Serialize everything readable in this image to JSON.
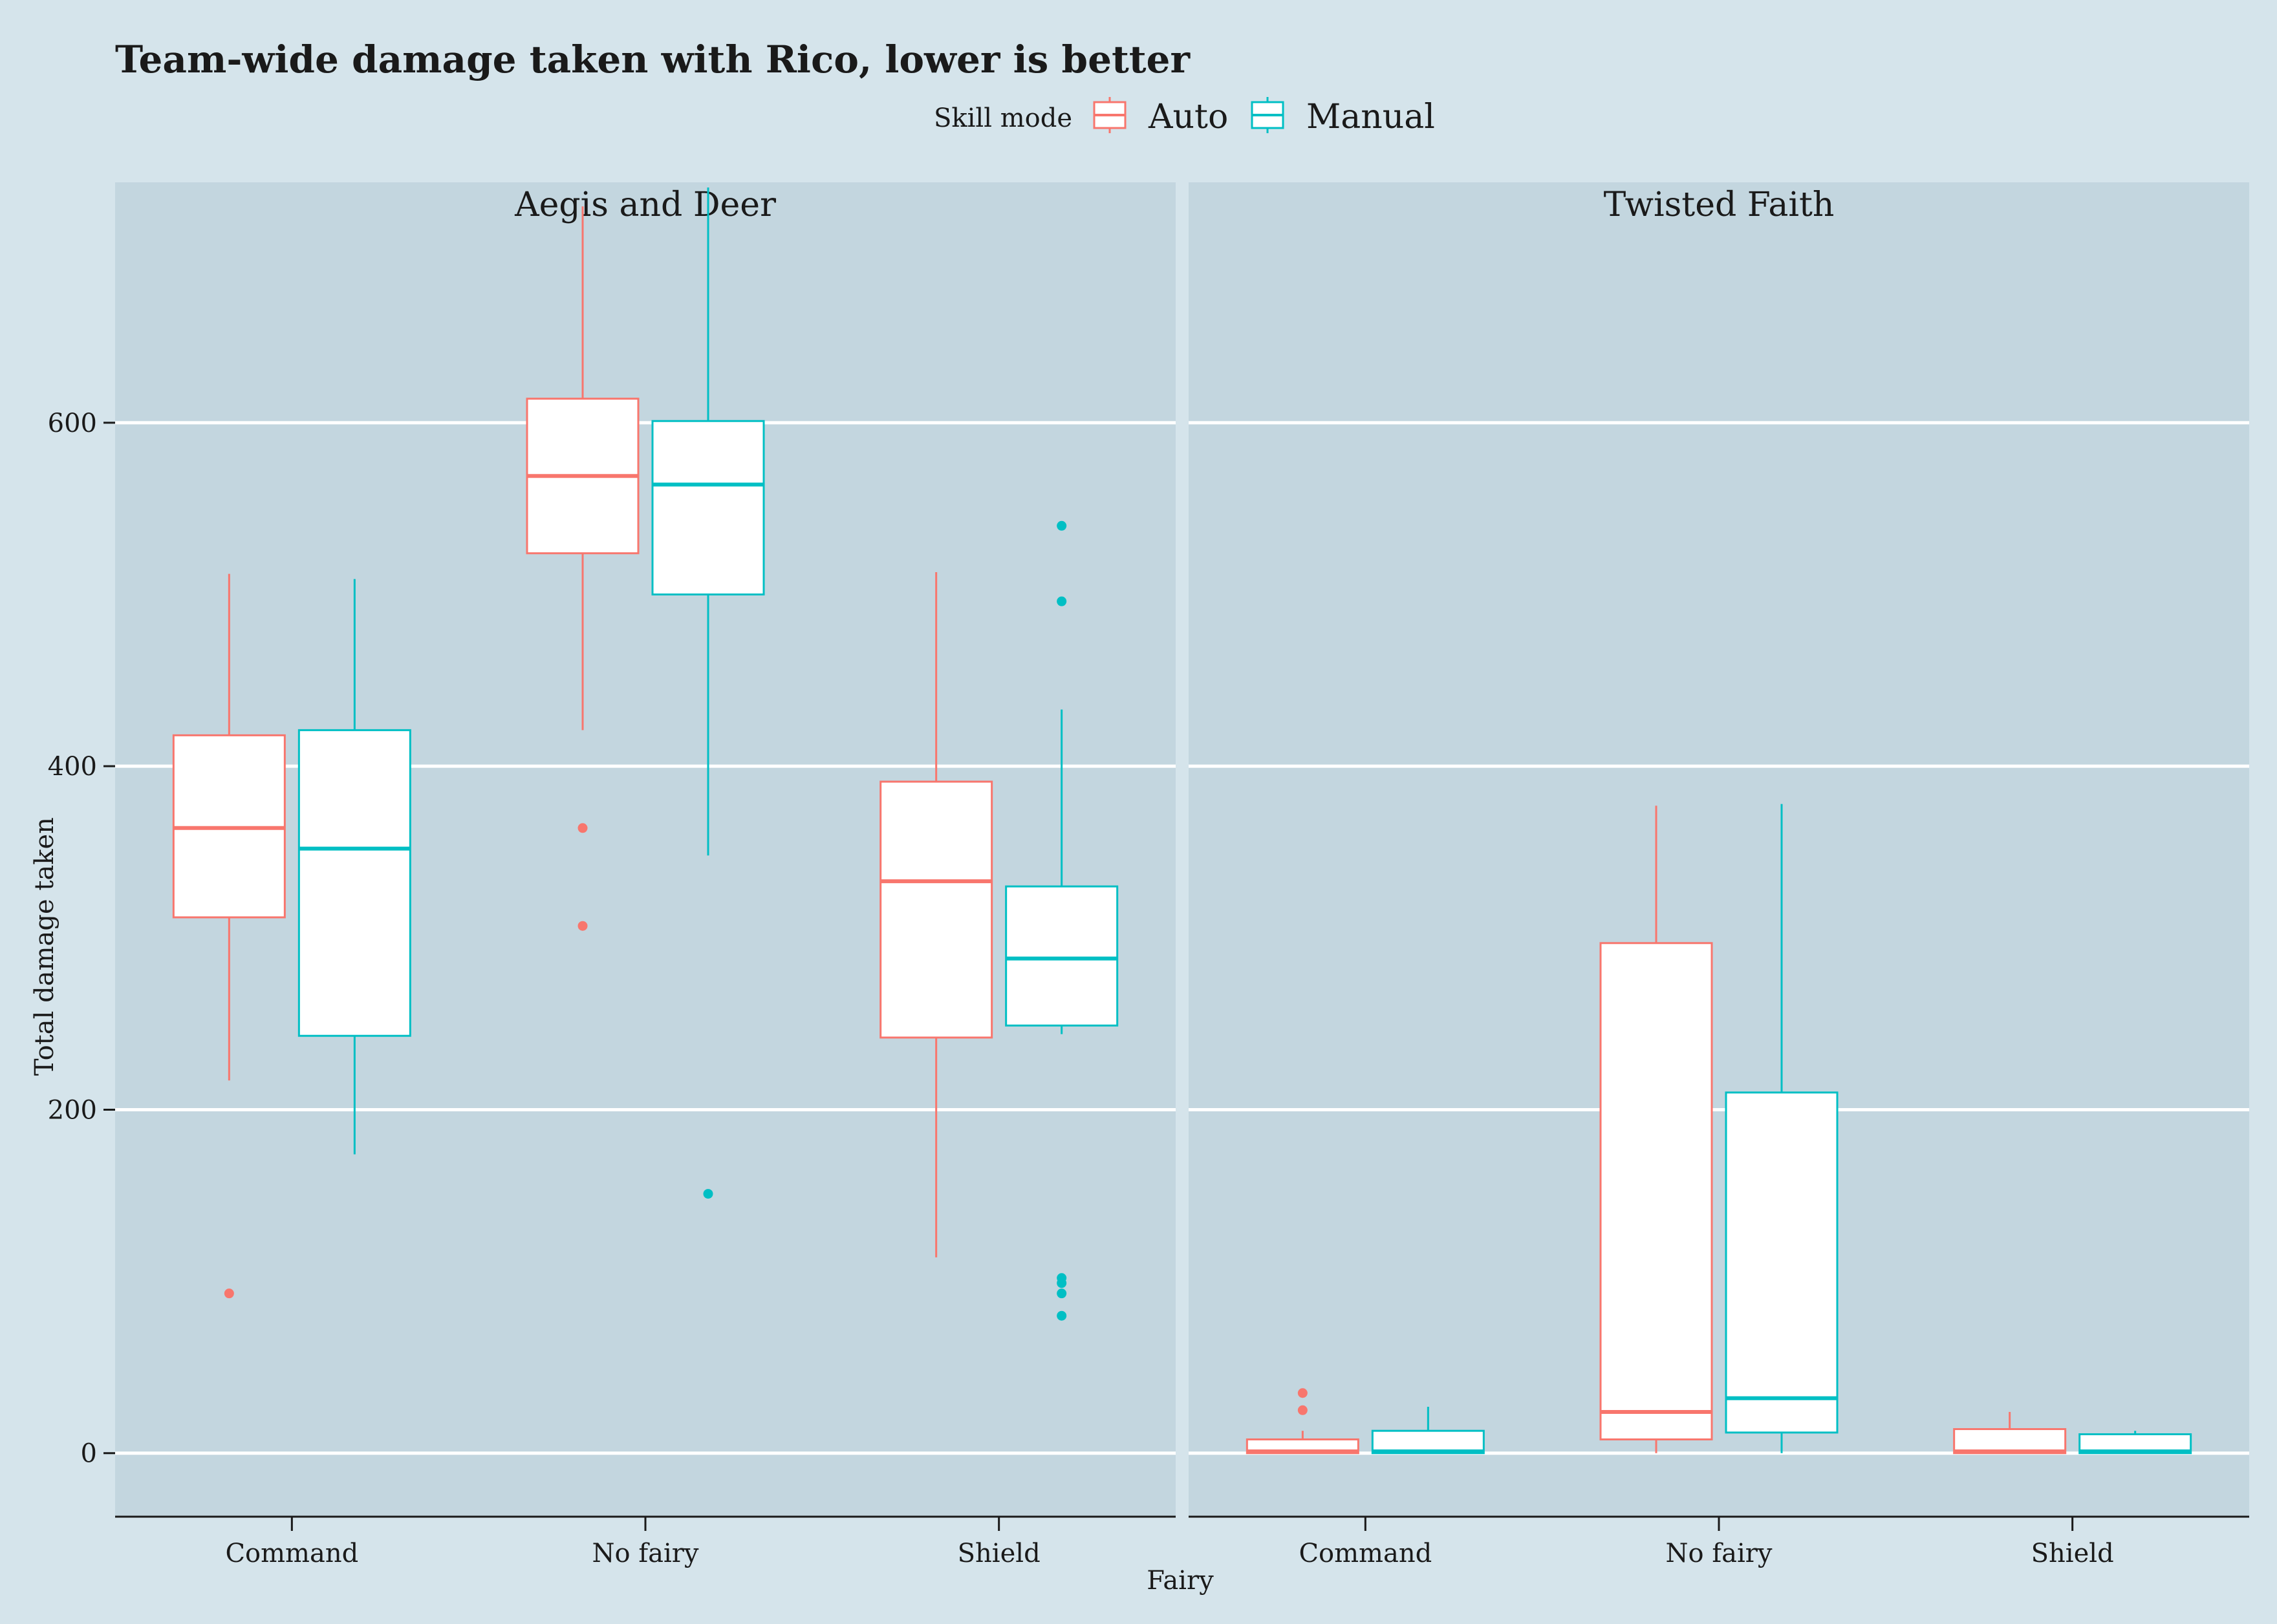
{
  "chart_data": {
    "type": "boxplot",
    "title": "Team-wide damage taken with Rico, lower is better",
    "xlabel": "Fairy",
    "ylabel": "Total damage taken",
    "ylim": [
      -37,
      740
    ],
    "yticks": [
      0,
      200,
      400,
      600
    ],
    "grid": "horizontal major lines",
    "legend": {
      "title": "Skill mode",
      "placement": "top-center",
      "entries": [
        {
          "name": "Auto",
          "color": "#f8766d"
        },
        {
          "name": "Manual",
          "color": "#00bfc4"
        }
      ]
    },
    "categories": [
      "Command",
      "No fairy",
      "Shield"
    ],
    "panels": [
      {
        "name": "Aegis and Deer",
        "groups": [
          {
            "category": "Command",
            "boxes": [
              {
                "series": "Auto",
                "whisker_low": 217,
                "q1": 312,
                "median": 364,
                "q3": 418,
                "whisker_high": 512,
                "outliers": [
                  93
                ]
              },
              {
                "series": "Manual",
                "whisker_low": 174,
                "q1": 243,
                "median": 352,
                "q3": 421,
                "whisker_high": 509,
                "outliers": []
              }
            ]
          },
          {
            "category": "No fairy",
            "boxes": [
              {
                "series": "Auto",
                "whisker_low": 421,
                "q1": 524,
                "median": 569,
                "q3": 614,
                "whisker_high": 726,
                "outliers": [
                  364,
                  307
                ]
              },
              {
                "series": "Manual",
                "whisker_low": 348,
                "q1": 500,
                "median": 564,
                "q3": 601,
                "whisker_high": 737,
                "outliers": [
                  151
                ]
              }
            ]
          },
          {
            "category": "Shield",
            "boxes": [
              {
                "series": "Auto",
                "whisker_low": 114,
                "q1": 242,
                "median": 333,
                "q3": 391,
                "whisker_high": 513,
                "outliers": []
              },
              {
                "series": "Manual",
                "whisker_low": 244,
                "q1": 249,
                "median": 288,
                "q3": 330,
                "whisker_high": 433,
                "outliers": [
                  540,
                  496,
                  102,
                  99,
                  93,
                  80
                ]
              }
            ]
          }
        ]
      },
      {
        "name": "Twisted Faith",
        "groups": [
          {
            "category": "Command",
            "boxes": [
              {
                "series": "Auto",
                "whisker_low": 0,
                "q1": 0,
                "median": 1,
                "q3": 8,
                "whisker_high": 13,
                "outliers": [
                  35,
                  25
                ]
              },
              {
                "series": "Manual",
                "whisker_low": 0,
                "q1": 0,
                "median": 1,
                "q3": 13,
                "whisker_high": 27,
                "outliers": []
              }
            ]
          },
          {
            "category": "No fairy",
            "boxes": [
              {
                "series": "Auto",
                "whisker_low": 0,
                "q1": 8,
                "median": 24,
                "q3": 297,
                "whisker_high": 377,
                "outliers": []
              },
              {
                "series": "Manual",
                "whisker_low": 0,
                "q1": 12,
                "median": 32,
                "q3": 210,
                "whisker_high": 378,
                "outliers": []
              }
            ]
          },
          {
            "category": "Shield",
            "boxes": [
              {
                "series": "Auto",
                "whisker_low": 0,
                "q1": 0,
                "median": 1,
                "q3": 14,
                "whisker_high": 24,
                "outliers": []
              },
              {
                "series": "Manual",
                "whisker_low": 0,
                "q1": 0,
                "median": 1,
                "q3": 11,
                "whisker_high": 13,
                "outliers": []
              }
            ]
          }
        ]
      }
    ]
  }
}
